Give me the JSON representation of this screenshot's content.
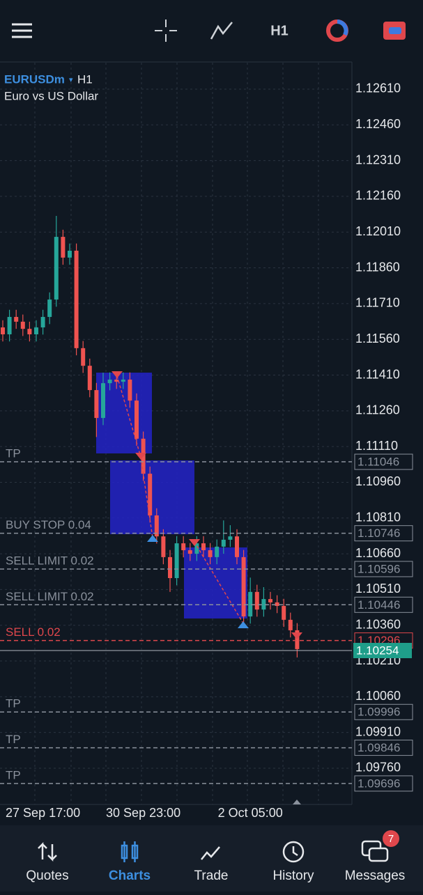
{
  "toolbar": {
    "timeframe": "H1"
  },
  "chart_data": {
    "type": "candlestick",
    "symbol": "EURUSDm",
    "timeframe": "H1",
    "description": "Euro vs US Dollar",
    "categories": [
      null,
      null,
      null,
      null,
      null,
      null,
      "27 Sep 17:00",
      null,
      null,
      null,
      null,
      null,
      null,
      null,
      null,
      null,
      null,
      null,
      null,
      null,
      null,
      "30 Sep 23:00",
      null,
      null,
      null,
      null,
      null,
      null,
      null,
      null,
      null,
      null,
      null,
      null,
      null,
      null,
      null,
      "2 Oct 05:00",
      null,
      null,
      null,
      null,
      null,
      null,
      null
    ],
    "open": [
      1.1161,
      1.11581,
      1.11654,
      1.11634,
      1.11604,
      1.11581,
      1.1161,
      1.11654,
      1.11727,
      1.1199,
      1.11903,
      1.11932,
      1.11523,
      1.11449,
      1.11347,
      1.1123,
      1.11376,
      1.11391,
      1.11382,
      1.11391,
      1.11303,
      1.11143,
      1.10996,
      1.10821,
      1.10733,
      1.10646,
      1.10558,
      1.10704,
      1.10675,
      1.1066,
      1.10704,
      1.10675,
      1.10646,
      1.1069,
      1.10719,
      1.10733,
      1.10646,
      1.10397,
      1.105,
      1.10426,
      1.1047,
      1.10456,
      1.10441,
      1.10383,
      1.10339
    ],
    "high": [
      1.1164,
      1.11684,
      1.11684,
      1.11664,
      1.11634,
      1.1164,
      1.11684,
      1.11757,
      1.12078,
      1.1202,
      1.11962,
      1.11962,
      1.11553,
      1.11479,
      1.11377,
      1.1142,
      1.11421,
      1.11421,
      1.11421,
      1.11421,
      1.11333,
      1.11173,
      1.11026,
      1.10851,
      1.10763,
      1.10676,
      1.10734,
      1.10734,
      1.10705,
      1.10734,
      1.10734,
      1.10705,
      1.1072,
      1.108,
      1.1078,
      1.10763,
      1.10676,
      1.1056,
      1.1053,
      1.1052,
      1.105,
      1.10486,
      1.10471,
      1.10413,
      1.10369
    ],
    "low": [
      1.11551,
      1.11551,
      1.11604,
      1.11574,
      1.11551,
      1.11551,
      1.1158,
      1.11624,
      1.11697,
      1.11873,
      1.11873,
      1.11493,
      1.11419,
      1.11317,
      1.1115,
      1.112,
      1.11346,
      1.11352,
      1.11352,
      1.11273,
      1.11113,
      1.10966,
      1.10791,
      1.10703,
      1.10616,
      1.105,
      1.10528,
      1.10645,
      1.1063,
      1.1063,
      1.10645,
      1.10616,
      1.10616,
      1.1066,
      1.10689,
      1.10616,
      1.10367,
      1.10367,
      1.10396,
      1.10396,
      1.10426,
      1.10411,
      1.10353,
      1.10309,
      1.10225
    ],
    "close": [
      1.11581,
      1.11654,
      1.11634,
      1.11604,
      1.11581,
      1.1161,
      1.11654,
      1.11727,
      1.1199,
      1.11903,
      1.11932,
      1.11523,
      1.11449,
      1.11347,
      1.1123,
      1.11376,
      1.11391,
      1.11382,
      1.11391,
      1.11303,
      1.11143,
      1.10996,
      1.10821,
      1.10733,
      1.10646,
      1.10558,
      1.10704,
      1.10675,
      1.1066,
      1.10704,
      1.10675,
      1.10646,
      1.1069,
      1.10719,
      1.10733,
      1.10646,
      1.10397,
      1.105,
      1.10426,
      1.1047,
      1.10456,
      1.10441,
      1.10383,
      1.10339,
      1.1026
    ],
    "up_color": "#26a69a",
    "down_color": "#ef5350",
    "ylim": [
      1.09608,
      1.12721
    ],
    "yticks": [
      {
        "value": 1.1261,
        "label": "1.12610"
      },
      {
        "value": 1.1246,
        "label": "1.12460"
      },
      {
        "value": 1.1231,
        "label": "1.12310"
      },
      {
        "value": 1.1216,
        "label": "1.12160"
      },
      {
        "value": 1.1201,
        "label": "1.12010"
      },
      {
        "value": 1.1186,
        "label": "1.11860"
      },
      {
        "value": 1.1171,
        "label": "1.11710"
      },
      {
        "value": 1.1156,
        "label": "1.11560"
      },
      {
        "value": 1.1141,
        "label": "1.11410"
      },
      {
        "value": 1.1126,
        "label": "1.11260"
      },
      {
        "value": 1.1111,
        "label": "1.11110"
      },
      {
        "value": 1.1096,
        "label": "1.10960"
      },
      {
        "value": 1.1081,
        "label": "1.10810"
      },
      {
        "value": 1.1066,
        "label": "1.10660"
      },
      {
        "value": 1.1051,
        "label": "1.10510"
      },
      {
        "value": 1.1036,
        "label": "1.10360"
      },
      {
        "value": 1.1021,
        "label": "1.10210"
      },
      {
        "value": 1.1006,
        "label": "1.10060"
      },
      {
        "value": 1.0991,
        "label": "1.09910"
      },
      {
        "value": 1.0976,
        "label": "1.09760"
      }
    ],
    "grid": true,
    "order_lines": [
      {
        "label": "TP",
        "value": 1.11046,
        "color": "#8a919c"
      },
      {
        "label": "BUY STOP 0.04",
        "value": 1.10746,
        "color": "#8a919c"
      },
      {
        "label": "SELL LIMIT 0.02",
        "value": 1.10596,
        "color": "#8a919c"
      },
      {
        "label": "SELL LIMIT 0.02",
        "value": 1.10446,
        "color": "#8a919c"
      },
      {
        "label": "SELL 0.02",
        "value": 1.10296,
        "color": "#e0474c"
      },
      {
        "label": "TP",
        "value": 1.09996,
        "color": "#8a919c"
      },
      {
        "label": "TP",
        "value": 1.09846,
        "color": "#8a919c"
      },
      {
        "label": "TP",
        "value": 1.09696,
        "color": "#8a919c"
      }
    ],
    "bid": {
      "value": 1.10254,
      "color": "#1f9e8a"
    }
  },
  "nav": {
    "items": [
      "Quotes",
      "Charts",
      "Trade",
      "History",
      "Messages"
    ],
    "active": 1,
    "messages_badge": 7
  }
}
